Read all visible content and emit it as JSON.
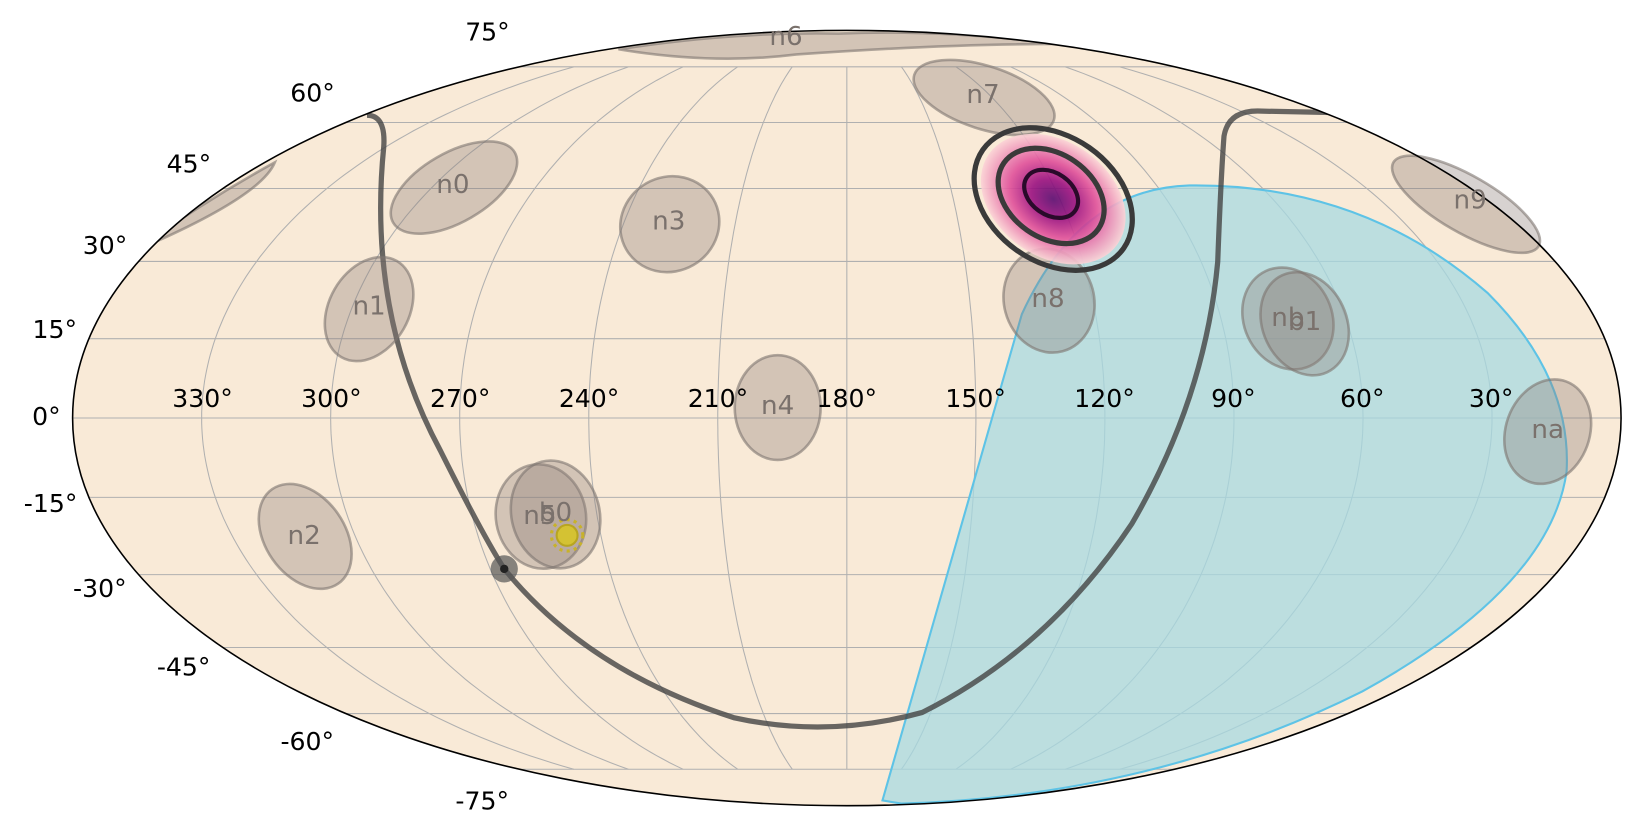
{
  "lon_labels": [
    "330°",
    "300°",
    "270°",
    "240°",
    "210°",
    "180°",
    "150°",
    "120°",
    "90°",
    "60°",
    "30°"
  ],
  "lat_labels": [
    "75°",
    "60°",
    "45°",
    "30°",
    "15°",
    "0°",
    "-15°",
    "-30°",
    "-45°",
    "-60°",
    "-75°"
  ],
  "detectors": [
    "n0",
    "n1",
    "n2",
    "n3",
    "n4",
    "n5",
    "n6",
    "n7",
    "n8",
    "n9",
    "na",
    "nb",
    "b0",
    "b1"
  ]
}
